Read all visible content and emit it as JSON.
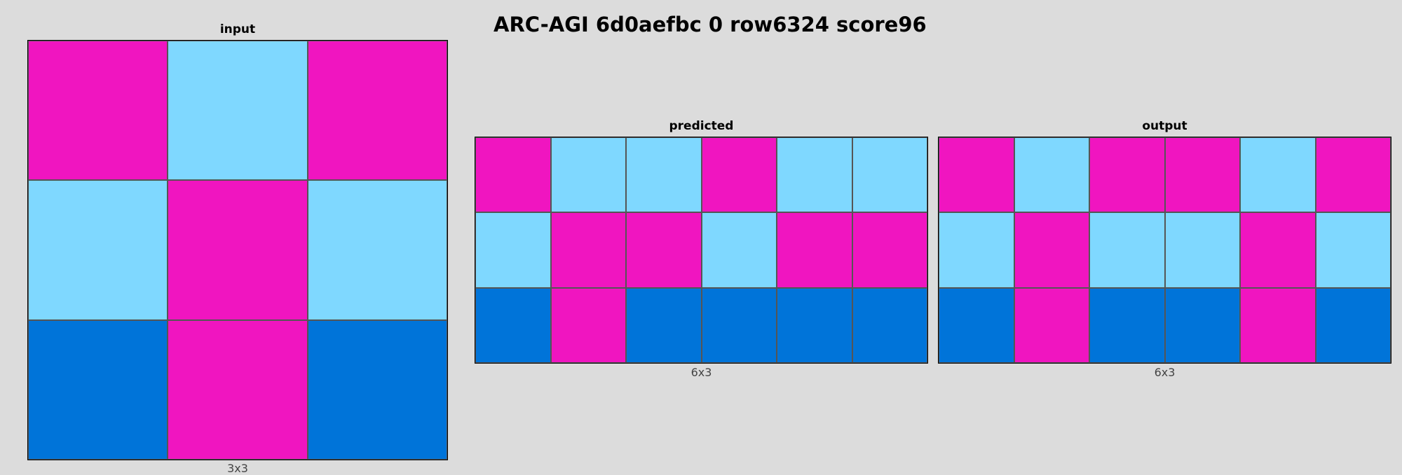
{
  "title": "ARC-AGI 6d0aefbc 0 row6324 score96",
  "palette": {
    "6": "#f015c0",
    "8": "#7fd8ff",
    "1": "#0074d9"
  },
  "panels": [
    {
      "id": "input",
      "label": "input",
      "dims": "3x3",
      "grid": [
        [
          6,
          8,
          6
        ],
        [
          8,
          6,
          8
        ],
        [
          1,
          6,
          1
        ]
      ]
    },
    {
      "id": "predicted",
      "label": "predicted",
      "dims": "6x3",
      "grid": [
        [
          6,
          8,
          8,
          6,
          8,
          8
        ],
        [
          8,
          6,
          6,
          8,
          6,
          6
        ],
        [
          1,
          6,
          1,
          1,
          1,
          1
        ]
      ]
    },
    {
      "id": "output",
      "label": "output",
      "dims": "6x3",
      "grid": [
        [
          6,
          8,
          6,
          6,
          8,
          6
        ],
        [
          8,
          6,
          8,
          8,
          6,
          8
        ],
        [
          1,
          6,
          1,
          1,
          6,
          1
        ]
      ]
    }
  ]
}
